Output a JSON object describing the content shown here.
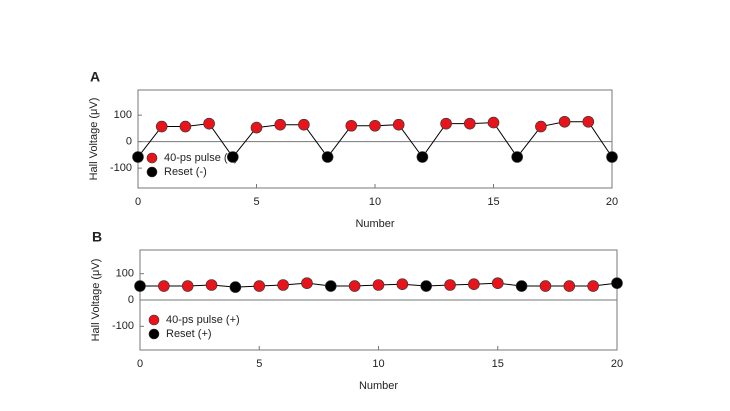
{
  "chart_data": [
    {
      "type": "line",
      "panel_label": "A",
      "xlabel": "Number",
      "ylabel": "Hall Voltage (μV)",
      "xlim": [
        0,
        20
      ],
      "xticks": [
        0,
        5,
        10,
        15,
        20
      ],
      "ylim": [
        -175,
        195
      ],
      "yticks": [
        -100,
        0,
        100
      ],
      "zero_line": true,
      "line_color": "#000000",
      "legend": "lower left",
      "series": [
        {
          "name": "40-ps pulse (+)",
          "color": "#e8141c",
          "x": [
            1,
            2,
            3,
            5,
            6,
            7,
            9,
            10,
            11,
            13,
            14,
            15,
            17,
            18,
            19
          ],
          "values": [
            57,
            57,
            68,
            53,
            64,
            64,
            60,
            60,
            64,
            68,
            68,
            72,
            57,
            75,
            75
          ]
        },
        {
          "name": "Reset (-)",
          "color": "#000000",
          "x": [
            0,
            4,
            8,
            12,
            16,
            20
          ],
          "values": [
            -58,
            -58,
            -58,
            -58,
            -58,
            -58
          ]
        }
      ]
    },
    {
      "type": "line",
      "panel_label": "B",
      "xlabel": "Number",
      "ylabel": "Hall Voltage (μV)",
      "xlim": [
        0,
        20
      ],
      "xticks": [
        0,
        5,
        10,
        15,
        20
      ],
      "ylim": [
        -190,
        190
      ],
      "yticks": [
        -100,
        0,
        100
      ],
      "zero_line": true,
      "line_color": "#000000",
      "legend": "lower left",
      "series": [
        {
          "name": "40-ps pulse (+)",
          "color": "#e8141c",
          "x": [
            1,
            2,
            3,
            5,
            6,
            7,
            9,
            10,
            11,
            13,
            14,
            15,
            17,
            18,
            19
          ],
          "values": [
            53,
            53,
            57,
            53,
            57,
            64,
            53,
            57,
            60,
            57,
            60,
            64,
            53,
            53,
            53
          ]
        },
        {
          "name": "Reset (+)",
          "color": "#000000",
          "x": [
            0,
            4,
            8,
            12,
            16,
            20
          ],
          "values": [
            53,
            49,
            53,
            53,
            53,
            64
          ]
        }
      ]
    }
  ]
}
